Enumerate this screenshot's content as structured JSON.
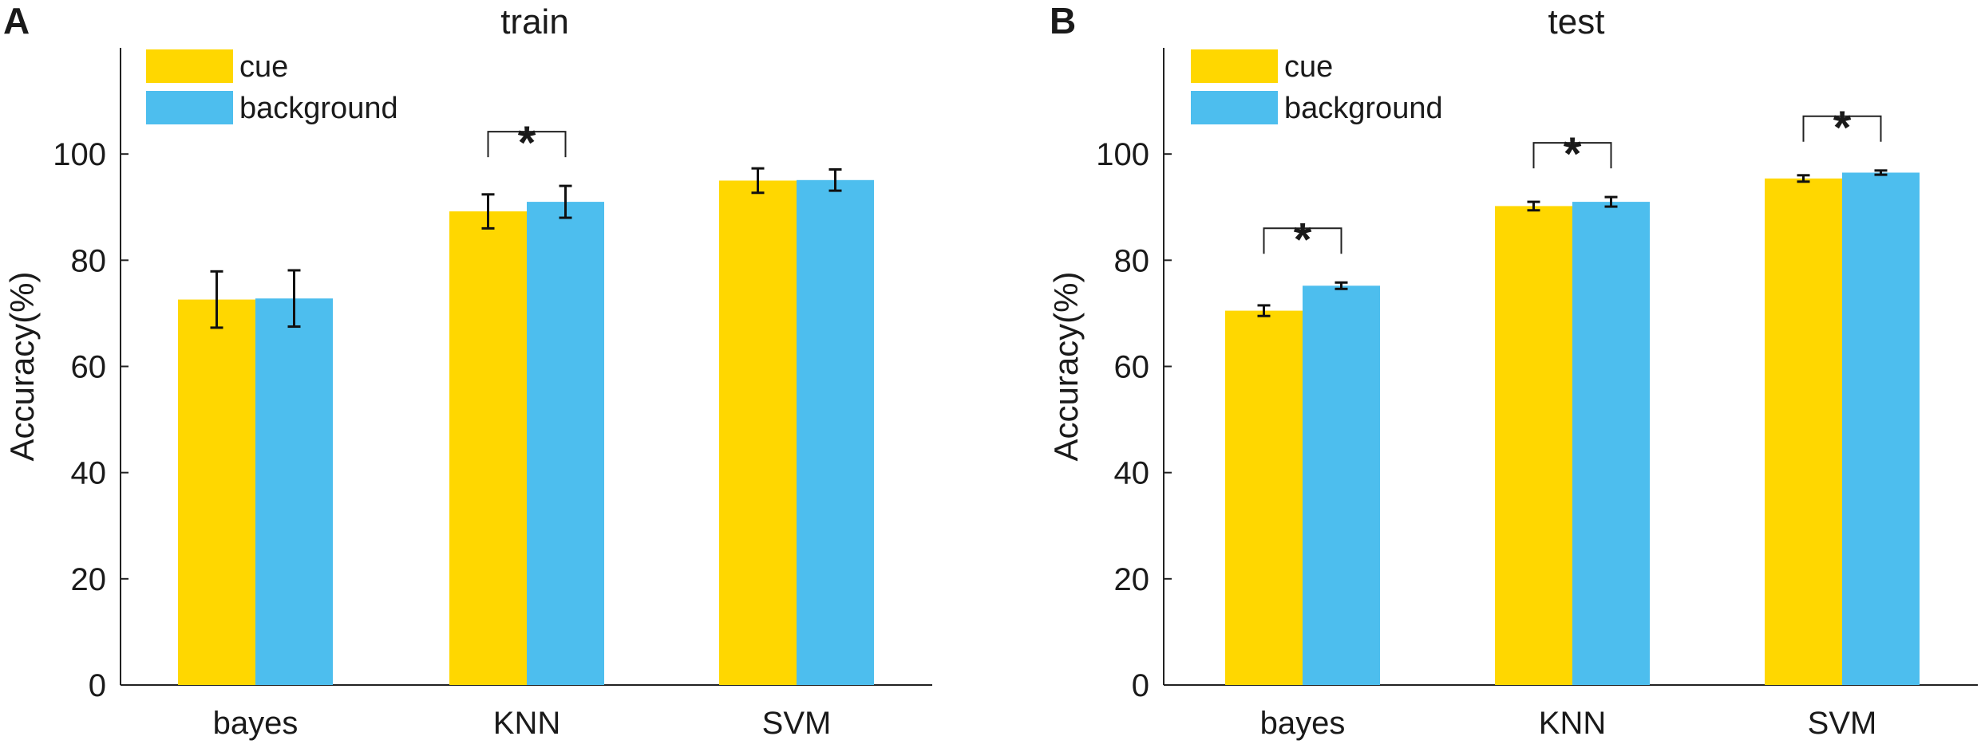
{
  "chart_data": [
    {
      "panel": "A",
      "type": "bar",
      "title": "train",
      "xlabel": "",
      "ylabel": "Accuracy(%)",
      "ylim": [
        0,
        120
      ],
      "yticks": [
        0,
        20,
        40,
        60,
        80,
        100
      ],
      "categories": [
        "bayes",
        "KNN",
        "SVM"
      ],
      "legend": {
        "position": "top-left",
        "entries": [
          "cue",
          "background"
        ]
      },
      "series": [
        {
          "name": "cue",
          "color": "#FFD700",
          "values": [
            72.6,
            89.2,
            95.0
          ],
          "errors": [
            5.3,
            3.2,
            2.3
          ]
        },
        {
          "name": "background",
          "color": "#4DBEEE",
          "values": [
            72.8,
            91.0,
            95.1
          ],
          "errors": [
            5.3,
            3.0,
            2.0
          ]
        }
      ],
      "significance": [
        {
          "category": "KNN",
          "label": "*"
        }
      ]
    },
    {
      "panel": "B",
      "type": "bar",
      "title": "test",
      "xlabel": "",
      "ylabel": "Accuracy(%)",
      "ylim": [
        0,
        120
      ],
      "yticks": [
        0,
        20,
        40,
        60,
        80,
        100
      ],
      "categories": [
        "bayes",
        "KNN",
        "SVM"
      ],
      "legend": {
        "position": "top-left",
        "entries": [
          "cue",
          "background"
        ]
      },
      "series": [
        {
          "name": "cue",
          "color": "#FFD700",
          "values": [
            70.5,
            90.2,
            95.4
          ],
          "errors": [
            1.0,
            0.8,
            0.6
          ]
        },
        {
          "name": "background",
          "color": "#4DBEEE",
          "values": [
            75.2,
            91.0,
            96.5
          ],
          "errors": [
            0.6,
            0.9,
            0.4
          ]
        }
      ],
      "significance": [
        {
          "category": "bayes",
          "label": "*"
        },
        {
          "category": "KNN",
          "label": "*"
        },
        {
          "category": "SVM",
          "label": "*"
        }
      ]
    }
  ]
}
